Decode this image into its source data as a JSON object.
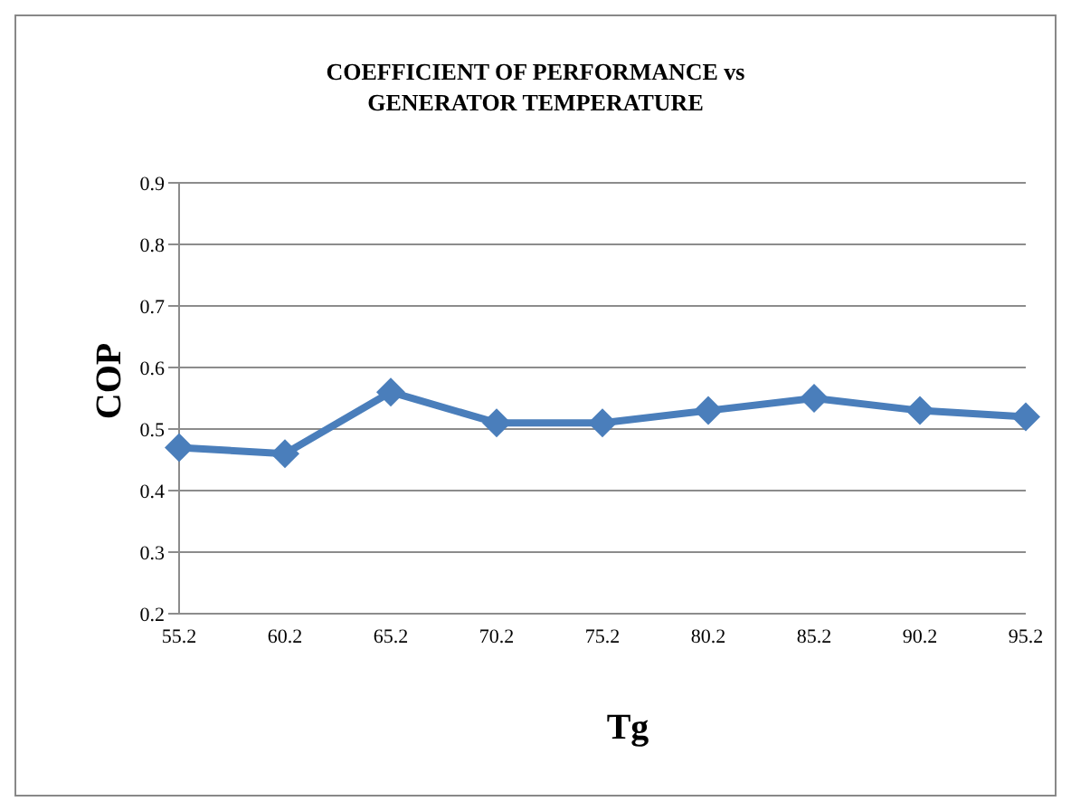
{
  "chart_data": {
    "type": "line",
    "title": "COEFFICIENT OF PERFORMANCE vs\nGENERATOR TEMPERATURE",
    "xlabel": "Tg",
    "ylabel": "COP",
    "categories": [
      "55.2",
      "60.2",
      "65.2",
      "70.2",
      "75.2",
      "80.2",
      "85.2",
      "90.2",
      "95.2"
    ],
    "series": [
      {
        "color": "#4a7ebb",
        "values": [
          0.47,
          0.46,
          0.56,
          0.51,
          0.51,
          0.53,
          0.55,
          0.53,
          0.52
        ]
      }
    ],
    "ylim": [
      0.2,
      0.9
    ],
    "yticks": [
      0.2,
      0.3,
      0.4,
      0.5,
      0.6,
      0.7,
      0.8,
      0.9
    ],
    "grid": "y",
    "legend": false,
    "marker": "diamond",
    "line_style": "solid"
  }
}
